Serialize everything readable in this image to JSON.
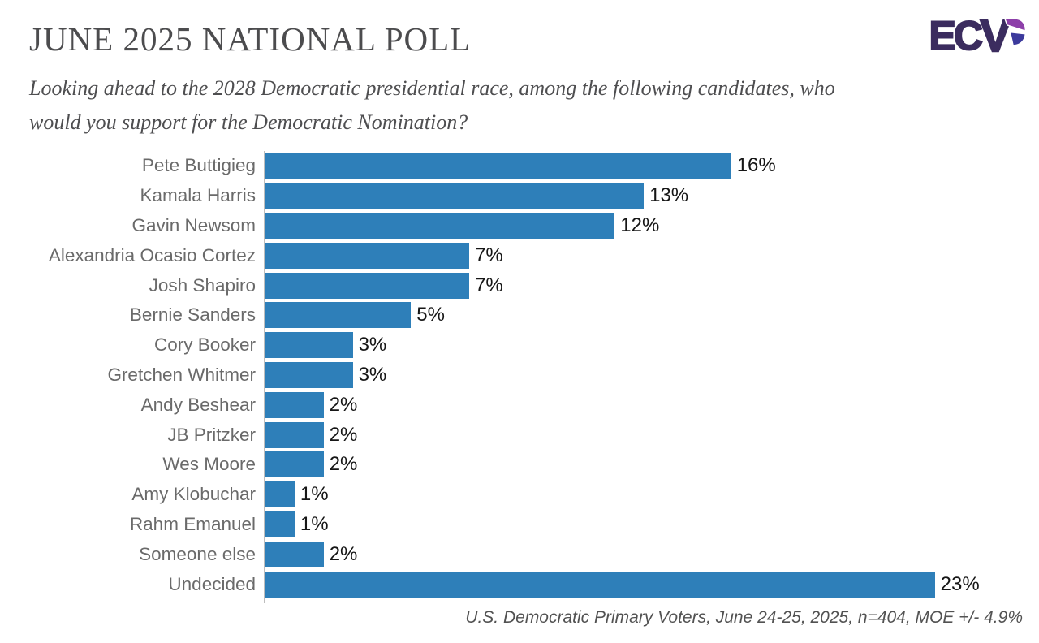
{
  "header": {
    "title": "JUNE 2025 NATIONAL POLL",
    "logo": {
      "letters": "EC",
      "stylized_letter": "P",
      "colors": {
        "dark_purple": "#3b2c5f",
        "bright_purple": "#8d3fa9",
        "blue": "#3c3a9c"
      }
    }
  },
  "question": {
    "line1": "Looking ahead to the 2028 Democratic presidential race, among the following candidates, who",
    "line2": "would you support for the Democratic Nomination?"
  },
  "chart_data": {
    "type": "bar",
    "orientation": "horizontal",
    "title": "JUNE 2025 NATIONAL POLL",
    "categories": [
      "Pete Buttigieg",
      "Kamala Harris",
      "Gavin Newsom",
      "Alexandria Ocasio Cortez",
      "Josh Shapiro",
      "Bernie Sanders",
      "Cory Booker",
      "Gretchen Whitmer",
      "Andy Beshear",
      "JB Pritzker",
      "Wes Moore",
      "Amy Klobuchar",
      "Rahm Emanuel",
      "Someone else",
      "Undecided"
    ],
    "values": [
      16,
      13,
      12,
      7,
      7,
      5,
      3,
      3,
      2,
      2,
      2,
      1,
      1,
      2,
      23
    ],
    "value_labels": [
      "16%",
      "13%",
      "12%",
      "7%",
      "7%",
      "5%",
      "3%",
      "3%",
      "2%",
      "2%",
      "2%",
      "1%",
      "1%",
      "2%",
      "23%"
    ],
    "unit": "percent",
    "xlim": [
      0,
      26.3
    ],
    "grid": false,
    "legend": false,
    "bar_color": "#2e7fb9",
    "axis_color": "#bdbdbd"
  },
  "footer": {
    "source_note": "U.S. Democratic Primary Voters, June 24-25, 2025, n=404, MOE +/- 4.9%"
  }
}
